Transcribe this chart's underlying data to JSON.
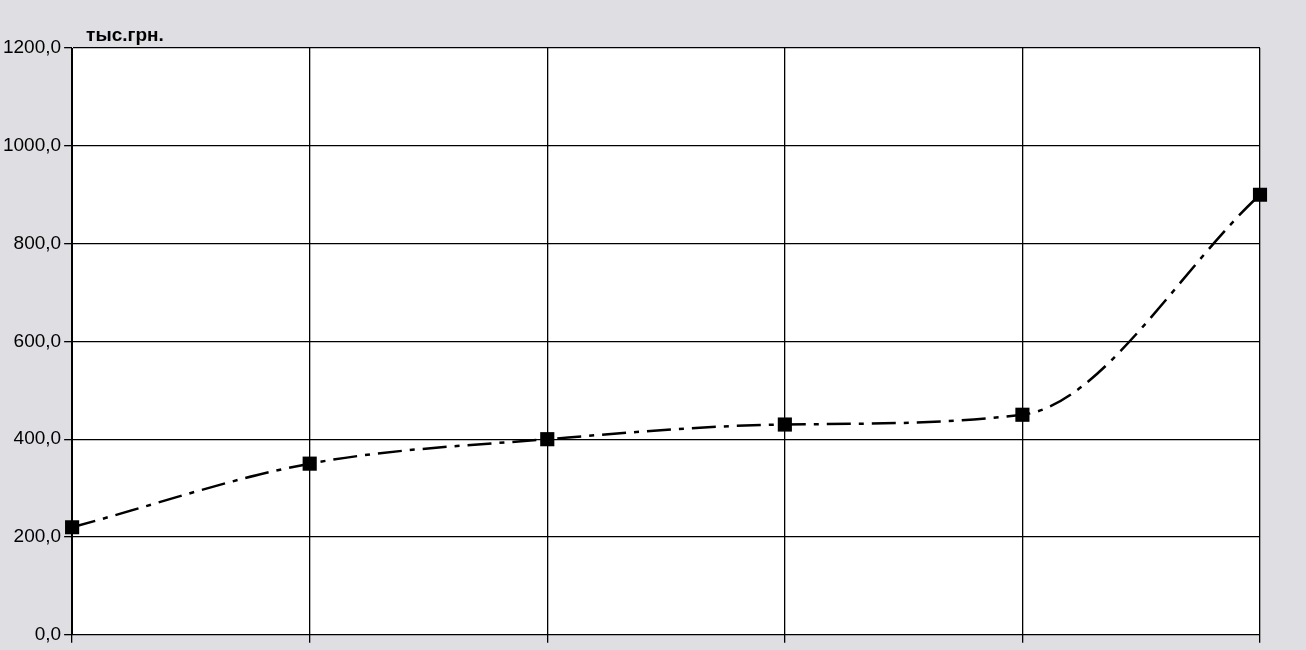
{
  "chart_data": {
    "type": "line",
    "ylabel": "тыс.грн.",
    "categories": [
      null,
      null,
      null,
      null,
      null,
      null
    ],
    "series": [
      {
        "color": "#000000",
        "values": [
          220,
          350,
          400,
          430,
          450,
          900
        ]
      }
    ],
    "ylim": [
      0,
      1200
    ],
    "yticks": [
      {
        "value": 0,
        "label": "0,0"
      },
      {
        "value": 200,
        "label": "200,0"
      },
      {
        "value": 400,
        "label": "400,0"
      },
      {
        "value": 600,
        "label": "600,0"
      },
      {
        "value": 800,
        "label": "800,0"
      },
      {
        "value": 1000,
        "label": "1000,0"
      },
      {
        "value": 1200,
        "label": "1200,0"
      }
    ],
    "grid": true,
    "legend": false,
    "marker": "square",
    "line_style": "dashed"
  }
}
